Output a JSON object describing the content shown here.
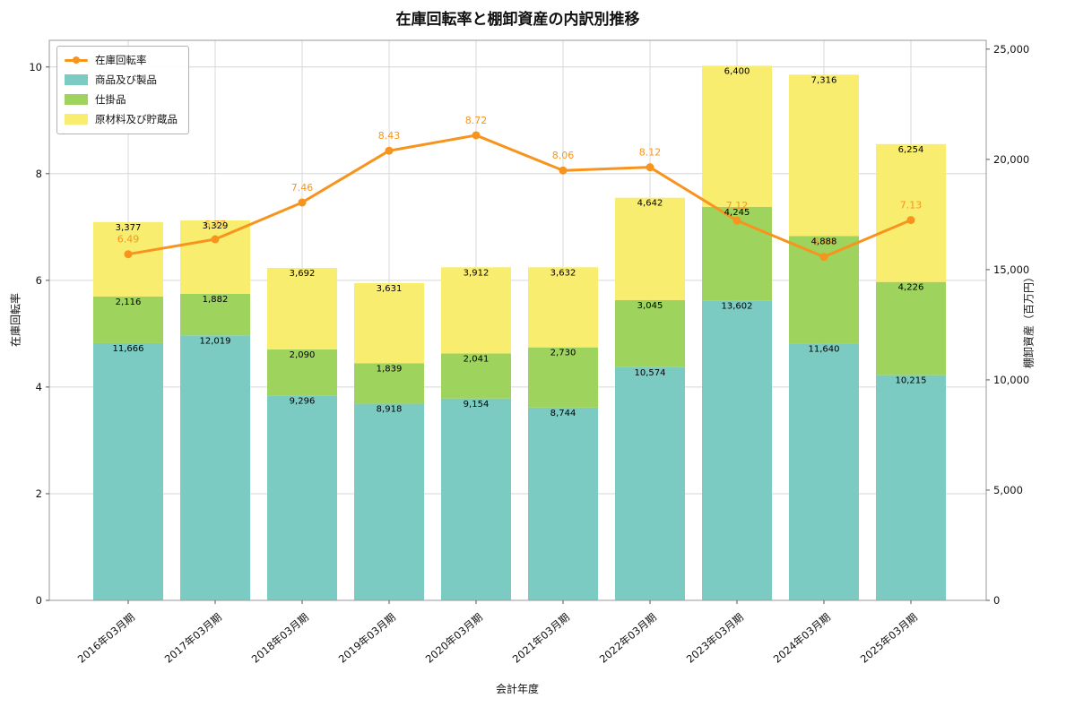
{
  "chart_data": {
    "type": "bar",
    "subtype": "stacked-bar-with-line",
    "title": "在庫回転率と棚卸資産の内訳別推移",
    "xlabel": "会計年度",
    "grid": true,
    "legend_position": "upper left",
    "categories": [
      "2016年03月期",
      "2017年03月期",
      "2018年03月期",
      "2019年03月期",
      "2020年03月期",
      "2021年03月期",
      "2022年03月期",
      "2023年03月期",
      "2024年03月期",
      "2025年03月期"
    ],
    "bar_series": [
      {
        "name": "商品及び製品",
        "color": "#7ccbc2",
        "values": [
          11666,
          12019,
          9296,
          8918,
          9154,
          8744,
          10574,
          13602,
          11640,
          10215
        ]
      },
      {
        "name": "仕掛品",
        "color": "#9ed35e",
        "values": [
          2116,
          1882,
          2090,
          1839,
          2041,
          2730,
          3045,
          4245,
          4888,
          4226
        ]
      },
      {
        "name": "原材料及び貯蔵品",
        "color": "#f8ed6f",
        "values": [
          3377,
          3329,
          3692,
          3631,
          3912,
          3632,
          4642,
          6400,
          7316,
          6254
        ]
      }
    ],
    "line_series": {
      "name": "在庫回転率",
      "color": "#f7941e",
      "values": [
        6.49,
        6.77,
        7.46,
        8.43,
        8.72,
        8.06,
        8.12,
        7.12,
        6.44,
        7.13
      ]
    },
    "left_axis": {
      "label": "在庫回転率",
      "min": 0,
      "max": 10.5,
      "ticks": [
        0,
        2,
        4,
        6,
        8,
        10
      ]
    },
    "right_axis": {
      "label": "棚卸資産（百万円）",
      "min": 0,
      "max": 25400,
      "ticks": [
        0,
        5000,
        10000,
        15000,
        20000,
        25000
      ]
    }
  }
}
